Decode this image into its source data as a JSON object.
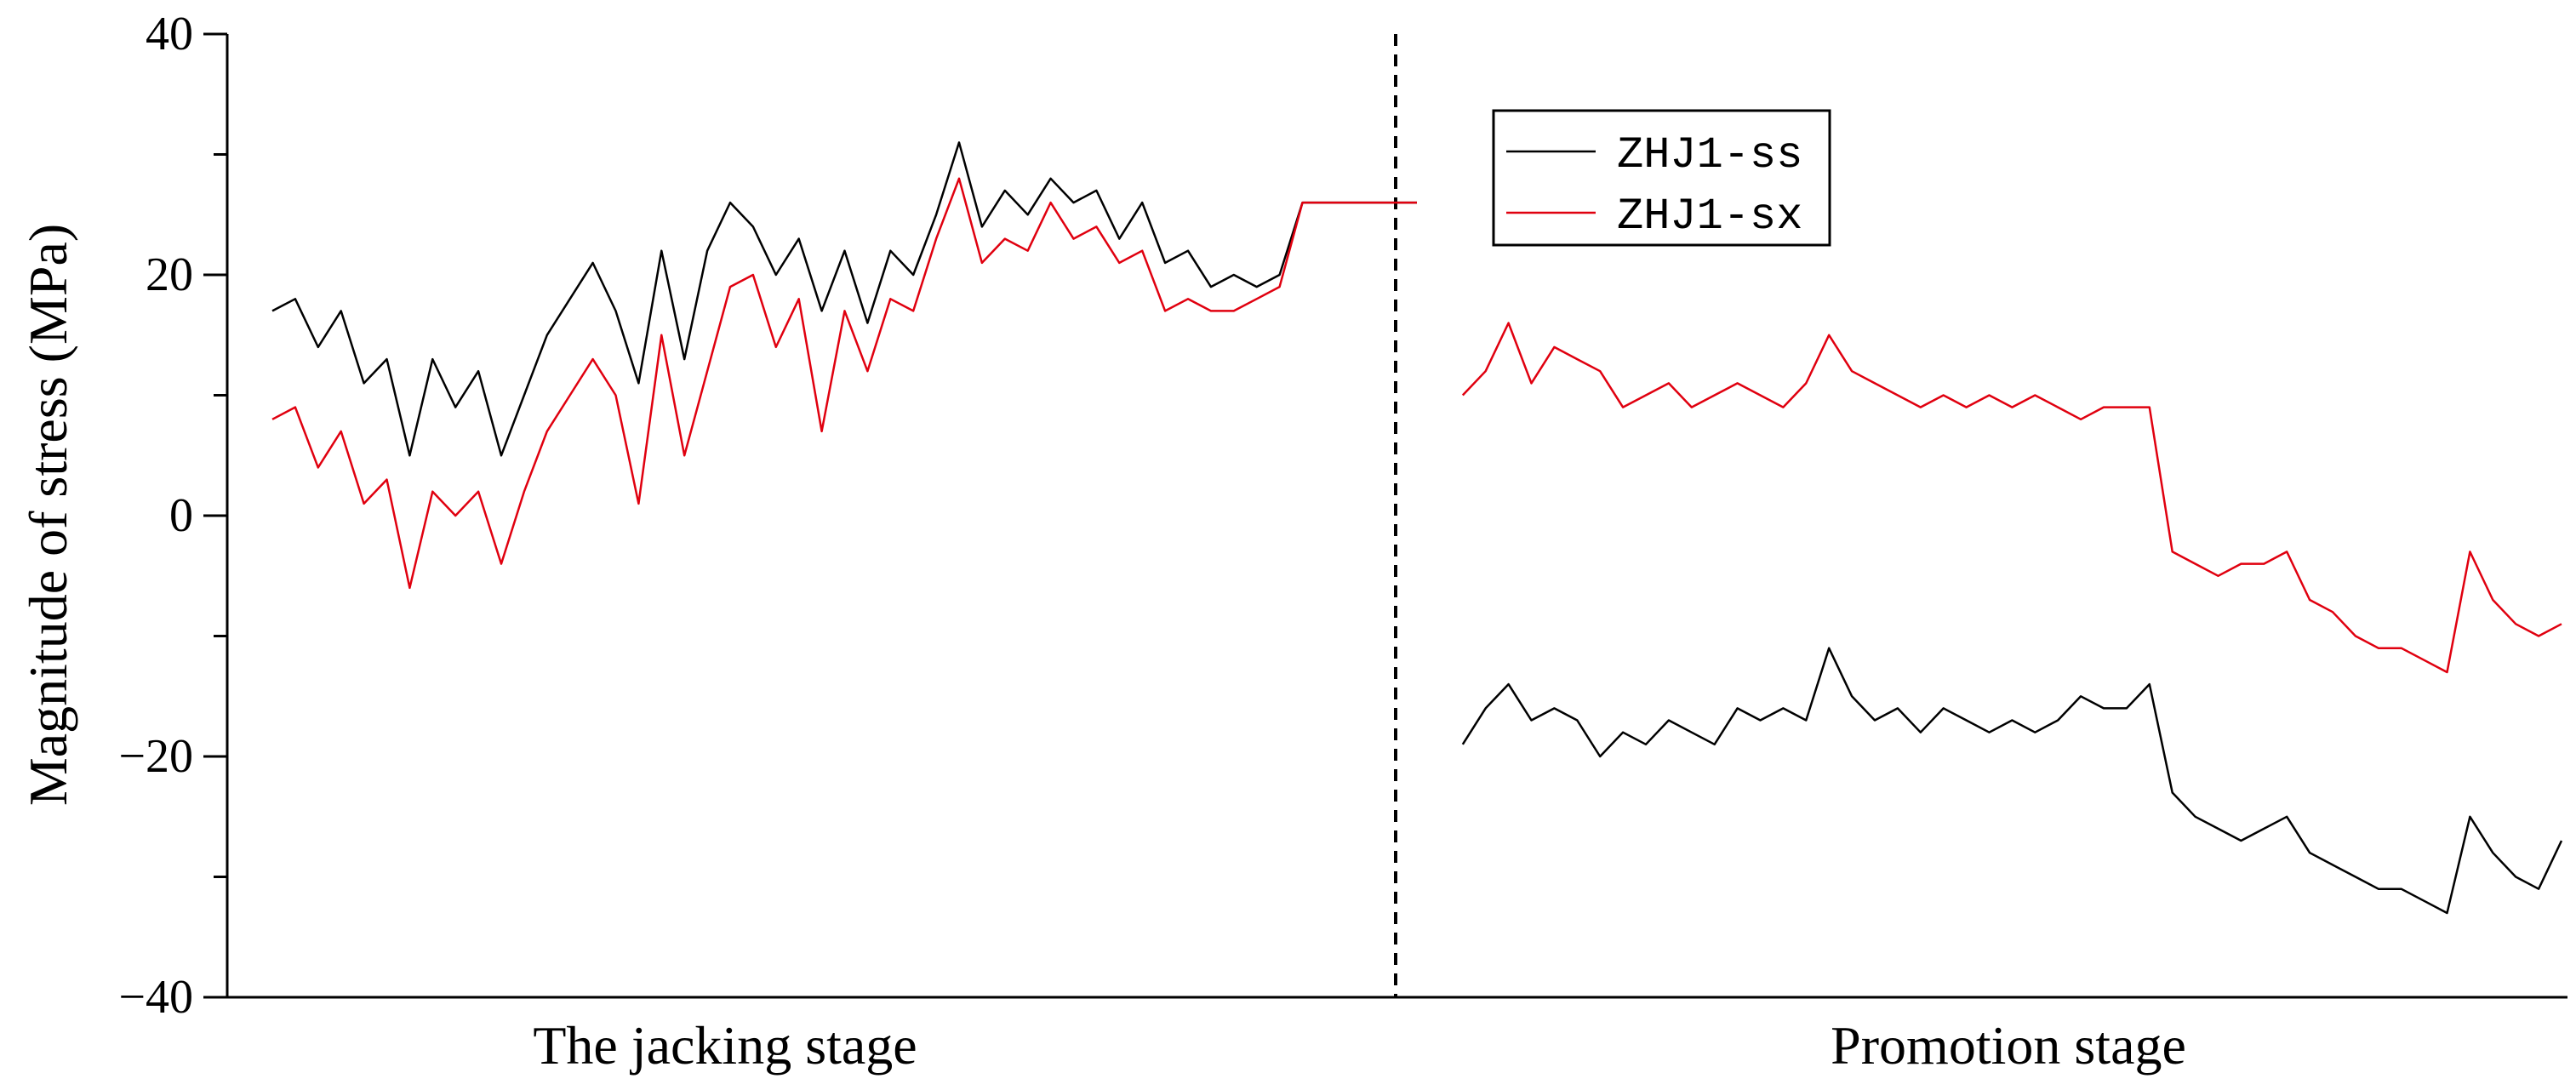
{
  "chart_data": {
    "type": "line",
    "title": "",
    "xlabel": "",
    "ylabel": "Magnitude of stress (MPa)",
    "ylim": [
      -40,
      40
    ],
    "yticks": [
      40,
      20,
      0,
      -20,
      -40
    ],
    "xlim": [
      0,
      100
    ],
    "grid": false,
    "legend": {
      "position": "top-right of left panel / inside"
    },
    "stage_divider_x": 50,
    "stage_labels": [
      {
        "text": "The jacking stage",
        "x": 25
      },
      {
        "text": "Promotion stage",
        "x": 77
      }
    ],
    "colors": {
      "ss": "#000000",
      "sx": "#e0000f",
      "axis": "#000000"
    },
    "series": [
      {
        "name": "ZHJ1-ss",
        "color": "#000000",
        "segments": [
          {
            "x": [
              0,
              1,
              2,
              3,
              4,
              5,
              6,
              7,
              8,
              9,
              10,
              11,
              12,
              13,
              14,
              15,
              16,
              17,
              18,
              19,
              20,
              21,
              22,
              23,
              24,
              25,
              26,
              27,
              28,
              29,
              30,
              31,
              32,
              33,
              34,
              35,
              36,
              37,
              38,
              39,
              40,
              41,
              42,
              43,
              44,
              45,
              46,
              47,
              48,
              49,
              50
            ],
            "y": [
              17,
              18,
              14,
              17,
              11,
              13,
              5,
              13,
              9,
              12,
              5,
              10,
              15,
              18,
              21,
              17,
              11,
              22,
              13,
              22,
              26,
              24,
              20,
              23,
              17,
              22,
              16,
              22,
              20,
              25,
              31,
              24,
              27,
              25,
              28,
              26,
              27,
              23,
              26,
              21,
              22,
              19,
              20,
              19,
              20,
              26,
              26,
              26,
              26,
              26,
              26
            ]
          },
          {
            "x": [
              52,
              53,
              54,
              55,
              56,
              57,
              58,
              59,
              60,
              61,
              62,
              63,
              64,
              65,
              66,
              67,
              68,
              69,
              70,
              71,
              72,
              73,
              74,
              75,
              76,
              77,
              78,
              79,
              80,
              81,
              82,
              83,
              84,
              85,
              86,
              87,
              88,
              89,
              90,
              91,
              92,
              93,
              94,
              95,
              96,
              97,
              98,
              99,
              100
            ],
            "y": [
              -19,
              -16,
              -14,
              -17,
              -16,
              -17,
              -20,
              -18,
              -19,
              -17,
              -18,
              -19,
              -16,
              -17,
              -16,
              -17,
              -11,
              -15,
              -17,
              -16,
              -18,
              -16,
              -17,
              -18,
              -17,
              -18,
              -17,
              -15,
              -16,
              -16,
              -14,
              -23,
              -25,
              -26,
              -27,
              -26,
              -25,
              -28,
              -29,
              -30,
              -31,
              -31,
              -32,
              -33,
              -25,
              -28,
              -30,
              -31,
              -27
            ]
          }
        ]
      },
      {
        "name": "ZHJ1-sx",
        "color": "#e0000f",
        "segments": [
          {
            "x": [
              0,
              1,
              2,
              3,
              4,
              5,
              6,
              7,
              8,
              9,
              10,
              11,
              12,
              13,
              14,
              15,
              16,
              17,
              18,
              19,
              20,
              21,
              22,
              23,
              24,
              25,
              26,
              27,
              28,
              29,
              30,
              31,
              32,
              33,
              34,
              35,
              36,
              37,
              38,
              39,
              40,
              41,
              42,
              43,
              44,
              45,
              46,
              47,
              48,
              49,
              50
            ],
            "y": [
              8,
              9,
              4,
              7,
              1,
              3,
              -6,
              2,
              0,
              2,
              -4,
              2,
              7,
              10,
              13,
              10,
              1,
              15,
              5,
              12,
              19,
              20,
              14,
              18,
              7,
              17,
              12,
              18,
              17,
              23,
              28,
              21,
              23,
              22,
              26,
              23,
              24,
              21,
              22,
              17,
              18,
              17,
              17,
              18,
              19,
              26,
              26,
              26,
              26,
              26,
              26
            ]
          },
          {
            "x": [
              52,
              53,
              54,
              55,
              56,
              57,
              58,
              59,
              60,
              61,
              62,
              63,
              64,
              65,
              66,
              67,
              68,
              69,
              70,
              71,
              72,
              73,
              74,
              75,
              76,
              77,
              78,
              79,
              80,
              81,
              82,
              83,
              84,
              85,
              86,
              87,
              88,
              89,
              90,
              91,
              92,
              93,
              94,
              95,
              96,
              97,
              98,
              99,
              100
            ],
            "y": [
              10,
              12,
              16,
              11,
              14,
              13,
              12,
              9,
              10,
              11,
              9,
              10,
              11,
              10,
              9,
              11,
              15,
              12,
              11,
              10,
              9,
              10,
              9,
              10,
              9,
              10,
              9,
              8,
              9,
              9,
              9,
              -3,
              -4,
              -5,
              -4,
              -4,
              -3,
              -7,
              -8,
              -10,
              -11,
              -11,
              -12,
              -13,
              -3,
              -7,
              -9,
              -10,
              -9
            ]
          }
        ]
      }
    ]
  }
}
